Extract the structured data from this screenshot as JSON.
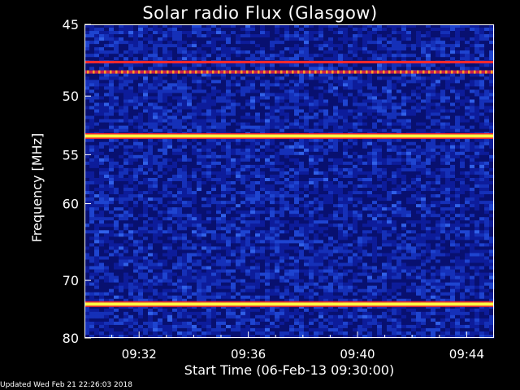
{
  "page": {
    "footer": "Updated Wed Feb 21 22:26:03 2018"
  },
  "chart_data": {
    "type": "heatmap",
    "title": "Solar radio Flux (Glasgow)",
    "xlabel": "Start Time (06-Feb-13 09:30:00)",
    "ylabel": "Frequency [MHz]",
    "x_tick_labels": [
      "09:32",
      "09:36",
      "09:40",
      "09:44"
    ],
    "x_tick_minutes": [
      2,
      6,
      10,
      14
    ],
    "xlim_minutes": [
      0,
      15
    ],
    "ylim": [
      45,
      80
    ],
    "y_ticks": [
      45,
      50,
      55,
      60,
      70,
      80
    ],
    "y_tick_labels": [
      "45",
      "50",
      "55",
      "60",
      "70",
      "80"
    ],
    "y_scale": "inverted-log",
    "colors": {
      "background": "#000000",
      "low": "#0a1790",
      "mid": "#1e3cc8",
      "high": "#ff2a2a",
      "peak": "#ffff40"
    },
    "bands": [
      {
        "freq": 47.5,
        "intensity": "high",
        "pattern": "striped"
      },
      {
        "freq": 48.2,
        "intensity": "high",
        "pattern": "dashed"
      },
      {
        "freq": 53.3,
        "intensity": "peak",
        "pattern": "solid"
      },
      {
        "freq": 73.8,
        "intensity": "peak",
        "pattern": "solid"
      }
    ]
  }
}
